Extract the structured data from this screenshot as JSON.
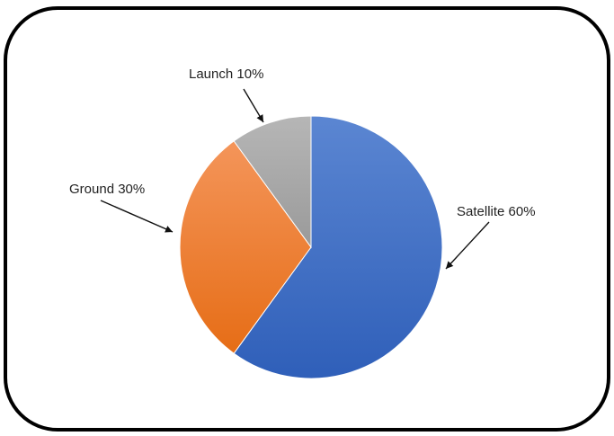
{
  "chart_data": {
    "type": "pie",
    "slices": [
      {
        "category": "Satellite",
        "value": 60,
        "label": "Satellite 60%"
      },
      {
        "category": "Ground",
        "value": 30,
        "label": "Ground 30%"
      },
      {
        "category": "Launch",
        "value": 10,
        "label": "Launch 10%"
      }
    ],
    "legend": "none",
    "colors": {
      "Satellite": "#3b6cc6",
      "Ground": "#ef7d2a",
      "Launch": "#a5a5a5",
      "frame": "#000000"
    }
  }
}
